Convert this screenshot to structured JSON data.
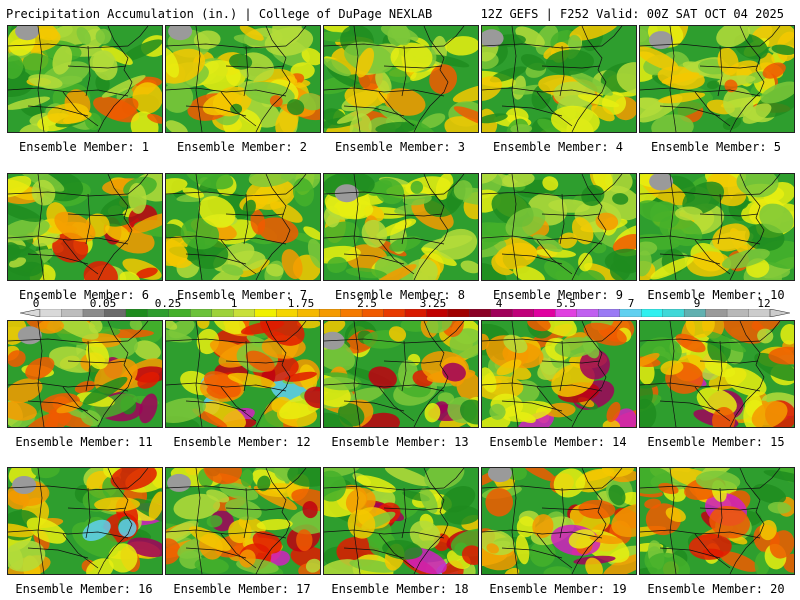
{
  "header": {
    "left": "Precipitation Accumulation (in.) | College of DuPage NEXLAB",
    "right": "12Z GEFS | F252 Valid: 00Z SAT OCT 04 2025"
  },
  "panels": [
    {
      "label": "Ensemble Member: 1"
    },
    {
      "label": "Ensemble Member: 2"
    },
    {
      "label": "Ensemble Member: 3"
    },
    {
      "label": "Ensemble Member: 4"
    },
    {
      "label": "Ensemble Member: 5"
    },
    {
      "label": "Ensemble Member: 6"
    },
    {
      "label": "Ensemble Member: 7"
    },
    {
      "label": "Ensemble Member: 8"
    },
    {
      "label": "Ensemble Member: 9"
    },
    {
      "label": "Ensemble Member: 10"
    },
    {
      "label": "Ensemble Member: 11"
    },
    {
      "label": "Ensemble Member: 12"
    },
    {
      "label": "Ensemble Member: 13"
    },
    {
      "label": "Ensemble Member: 14"
    },
    {
      "label": "Ensemble Member: 15"
    },
    {
      "label": "Ensemble Member: 16"
    },
    {
      "label": "Ensemble Member: 17"
    },
    {
      "label": "Ensemble Member: 18"
    },
    {
      "label": "Ensemble Member: 19"
    },
    {
      "label": "Ensemble Member: 20"
    }
  ],
  "colorbar": {
    "ticks": [
      "0",
      "0.05",
      "0.25",
      "1",
      "1.75",
      "2.5",
      "3.25",
      "4",
      "5.5",
      "7",
      "9",
      "12"
    ],
    "colors": [
      "#d9d9d9",
      "#bdbdbd",
      "#8c8c8c",
      "#6b6b6b",
      "#1e8c1e",
      "#2e9e2e",
      "#44b02a",
      "#6cc23a",
      "#9ed23a",
      "#c8e03a",
      "#f0f000",
      "#f5d500",
      "#f5b800",
      "#f59a00",
      "#f57a00",
      "#f05a00",
      "#e83a00",
      "#d81a00",
      "#c00000",
      "#a00000",
      "#8a0024",
      "#a0005a",
      "#c0007a",
      "#e000a0",
      "#e040e0",
      "#c060f0",
      "#9a7af5",
      "#60d0f0",
      "#30f0f0",
      "#40d8d8",
      "#60b0b0",
      "#9a9a9a",
      "#b8b8b8",
      "#cccccc"
    ]
  }
}
